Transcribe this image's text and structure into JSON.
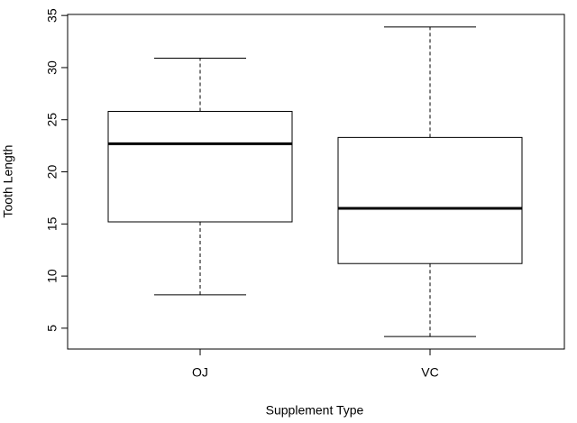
{
  "chart_data": {
    "type": "box",
    "x_label": "Supplement Type",
    "y_label": "Tooth Length",
    "categories": [
      "OJ",
      "VC"
    ],
    "boxes": [
      {
        "min": 8.2,
        "q1": 15.2,
        "median": 22.7,
        "q3": 25.8,
        "max": 30.9
      },
      {
        "min": 4.2,
        "q1": 11.2,
        "median": 16.5,
        "q3": 23.3,
        "max": 33.9
      }
    ],
    "color": "#000000",
    "ylim": [
      3.0,
      35.1
    ],
    "yticks": [
      5,
      10,
      15,
      20,
      25,
      30,
      35
    ]
  }
}
